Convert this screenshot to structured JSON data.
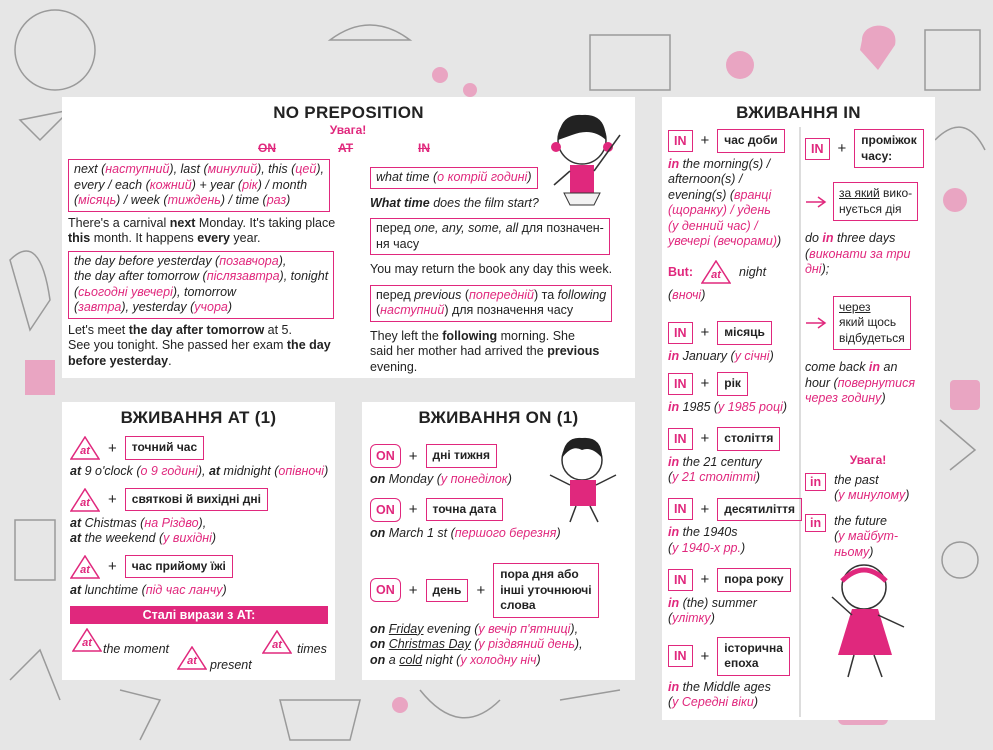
{
  "plus": "+",
  "no_preposition": {
    "title": "NO PREPOSITION",
    "note": "Увага!",
    "crossed": [
      "ON",
      "AT",
      "IN"
    ],
    "left": [
      [
        [
          "next (",
          {
            "pink": "наступний"
          },
          "), last (",
          {
            "pink": "минулий"
          },
          "), this (",
          {
            "pink": "цей"
          },
          "),"
        ],
        [
          "every / each (",
          {
            "pink": "кожний"
          },
          ") + year (",
          {
            "pink": "рік"
          },
          ") / month"
        ],
        [
          "(",
          {
            "pink": "місяць"
          },
          ") / week (",
          {
            "pink": "тиждень"
          },
          ") / time (",
          {
            "pink": "раз"
          },
          ")"
        ]
      ],
      [
        [
          "There's a carnival ",
          {
            "b": "next"
          },
          " Monday. It's taking place"
        ],
        [
          {
            "b": "this"
          },
          " month. It happens ",
          {
            "b": "every"
          },
          " year."
        ]
      ],
      [
        [
          "the day before yesterday (",
          {
            "pink": "позавчора"
          },
          "),"
        ],
        [
          "the day after tomorrow (",
          {
            "pink": "післязавтра"
          },
          "), tonight"
        ],
        [
          "(",
          {
            "pink": "сьогодні увечері"
          },
          "), tomorrow"
        ],
        [
          "(",
          {
            "pink": "завтра"
          },
          "), yesterday (",
          {
            "pink": "учора"
          },
          ")"
        ]
      ],
      [
        [
          "Let's meet ",
          {
            "b": "the day after tomorrow"
          },
          " at 5."
        ],
        [
          "See you tonight. She passed her exam ",
          {
            "b": "the day"
          }
        ],
        [
          {
            "b": "before yesterday"
          },
          "."
        ]
      ]
    ],
    "right": [
      [
        [
          "what time (",
          {
            "pink": "о котрій годині"
          },
          ")"
        ]
      ],
      [
        [
          {
            "b": "What time"
          },
          " does the film start?"
        ]
      ],
      [
        [
          "перед ",
          {
            "i": "one, any, some, all"
          },
          " для позначен-"
        ],
        [
          "ня часу"
        ]
      ],
      [
        [
          "You may return the book any day this week."
        ]
      ],
      [
        [
          "перед ",
          {
            "i": "previous"
          },
          " (",
          {
            "pink": "попередній"
          },
          ") та ",
          {
            "i": "following"
          }
        ],
        [
          "(",
          {
            "pink": "наступний"
          },
          ") для позначення часу"
        ]
      ],
      [
        [
          "They left the ",
          {
            "b": "following"
          },
          " morning. She"
        ],
        [
          "said her mother had arrived the ",
          {
            "b": "previous"
          }
        ],
        [
          "evening."
        ]
      ]
    ]
  },
  "at": {
    "title": "ВЖИВАННЯ AT (1)",
    "rules": [
      {
        "badge": "at",
        "label": [
          [
            "точний час"
          ]
        ],
        "example": [
          [
            {
              "b": "at"
            },
            " 9 o'clock (",
            {
              "pink": "о 9 годині"
            },
            "), ",
            {
              "b": "at"
            },
            " midnight (",
            {
              "pink": "опівночі"
            },
            ")"
          ]
        ]
      },
      {
        "badge": "at",
        "label": [
          [
            "святкові й вихідні дні"
          ]
        ],
        "example": [
          [
            {
              "b": "at"
            },
            " Chistmas (",
            {
              "pink": "на Різдво"
            },
            "),"
          ],
          [
            {
              "b": "at"
            },
            " the weekend (",
            {
              "pink": "у вихідні"
            },
            ")"
          ]
        ]
      },
      {
        "badge": "at",
        "label": [
          [
            "час прийому їжі"
          ]
        ],
        "example": [
          [
            {
              "b": "at"
            },
            " lunchtime (",
            {
              "pink": "під час ланчу"
            },
            ")"
          ]
        ]
      }
    ],
    "set_phrases": {
      "title": "Сталі вирази з AT:",
      "items": [
        {
          "badge": "at",
          "text": "the moment"
        },
        {
          "badge": "at",
          "text": "present"
        },
        {
          "badge": "at",
          "text": "times"
        }
      ]
    }
  },
  "on": {
    "title": "ВЖИВАННЯ ON (1)",
    "rules": [
      {
        "badge": "ON",
        "label": [
          [
            "дні тижня"
          ]
        ],
        "example": [
          [
            {
              "b": "on"
            },
            " Monday (",
            {
              "pink": "у понеділок"
            },
            ")"
          ]
        ]
      },
      {
        "badge": "ON",
        "label": [
          [
            "точна дата"
          ]
        ],
        "example": [
          [
            {
              "b": "on"
            },
            " March 1 st (",
            {
              "pink": "першого березня"
            },
            ")"
          ]
        ]
      },
      {
        "badge": "ON",
        "label": [
          [
            "день"
          ]
        ],
        "label2": [
          [
            "пора дня або"
          ],
          [
            "інші уточнюючі"
          ],
          [
            "слова"
          ]
        ],
        "example": [
          [
            {
              "b": "on"
            },
            " ",
            {
              "u": "Friday"
            },
            " evening (",
            {
              "pink": "у вечір п'ятниці"
            },
            "),"
          ],
          [
            {
              "b": "on"
            },
            " ",
            {
              "u": "Christmas Day"
            },
            " (",
            {
              "pink": "у різдвяний день"
            },
            "),"
          ],
          [
            {
              "b": "on"
            },
            " a ",
            {
              "u": "cold"
            },
            " night (",
            {
              "pink": "у холодну ніч"
            },
            ")"
          ]
        ]
      }
    ]
  },
  "in": {
    "title": "ВЖИВАННЯ IN",
    "rules": [
      {
        "badge": "IN",
        "label": [
          [
            "час доби"
          ]
        ],
        "example": [
          [
            {
              "b": "in"
            },
            " the morning(s) /"
          ],
          [
            "afternoon(s) /"
          ],
          [
            "evening(s) (",
            {
              "pink": "вранці"
            }
          ],
          [
            {
              "pink": "(щоранку) / удень"
            }
          ],
          [
            {
              "pink": "(у денний час) /"
            }
          ],
          [
            {
              "pink": "увечері (вечорами)"
            },
            ")"
          ]
        ]
      },
      {
        "badge": "IN",
        "label": [
          [
            "місяць"
          ]
        ],
        "example": [
          [
            {
              "b": "in"
            },
            " January (",
            {
              "pink": "у січні"
            },
            ")"
          ]
        ]
      },
      {
        "badge": "IN",
        "label": [
          [
            "рік"
          ]
        ],
        "example": [
          [
            {
              "b": "in"
            },
            " 1985 (",
            {
              "pink": "у 1985 році"
            },
            ")"
          ]
        ]
      },
      {
        "badge": "IN",
        "label": [
          [
            "століття"
          ]
        ],
        "example": [
          [
            {
              "b": "in"
            },
            " the 21 century"
          ],
          [
            "(",
            {
              "pink": "у 21 столітті"
            },
            ")"
          ]
        ]
      },
      {
        "badge": "IN",
        "label": [
          [
            "десятиліття"
          ]
        ],
        "example": [
          [
            {
              "b": "in"
            },
            " the 1940s"
          ],
          [
            "(",
            {
              "pink": "у 1940-х рр."
            },
            ")"
          ]
        ]
      },
      {
        "badge": "IN",
        "label": [
          [
            "пора року"
          ]
        ],
        "example": [
          [
            {
              "b": "in"
            },
            " (the) summer"
          ],
          [
            "(",
            {
              "pink": "улітку"
            },
            ")"
          ]
        ]
      },
      {
        "badge": "IN",
        "label": [
          [
            "історична"
          ],
          [
            "епоха"
          ]
        ],
        "example": [
          [
            {
              "b": "in"
            },
            " the Middle ages"
          ],
          [
            "(",
            {
              "pink": "у Середні віки"
            },
            ")"
          ]
        ]
      }
    ],
    "but": {
      "label": "But:",
      "badge": "at",
      "text": "night",
      "example": [
        [
          "(",
          {
            "pink": "вночі"
          },
          ")"
        ]
      ]
    },
    "interval": {
      "badge": "IN",
      "label": [
        [
          "проміжок"
        ],
        [
          "часу:"
        ]
      ],
      "cases": [
        {
          "label": [
            [
              {
                "u": "за який"
              },
              " вико-"
            ],
            [
              "нується дія"
            ]
          ],
          "example": [
            [
              "do ",
              {
                "b": "in"
              },
              " three days"
            ],
            [
              "(",
              {
                "pink": "виконати за три"
              }
            ],
            [
              {
                "pink": "дні"
              },
              ");"
            ]
          ]
        },
        {
          "label": [
            [
              {
                "u": "через"
              }
            ],
            [
              "який щось"
            ],
            [
              "відбудеться"
            ]
          ],
          "example": [
            [
              "come back ",
              {
                "b": "in"
              },
              " an"
            ],
            [
              "hour (",
              {
                "pink": "повернутися"
              }
            ],
            [
              {
                "pink": "через годину"
              },
              ")"
            ]
          ]
        }
      ]
    },
    "note": "Увага!",
    "extra": [
      {
        "badge": "in",
        "example": [
          [
            "the past"
          ],
          [
            "(",
            {
              "pink": "у минулому"
            },
            ")"
          ]
        ]
      },
      {
        "badge": "in",
        "example": [
          [
            "the future"
          ],
          [
            "(",
            {
              "pink": "у майбут-"
            }
          ],
          [
            {
              "pink": "ньому"
            },
            ")"
          ]
        ]
      }
    ]
  }
}
